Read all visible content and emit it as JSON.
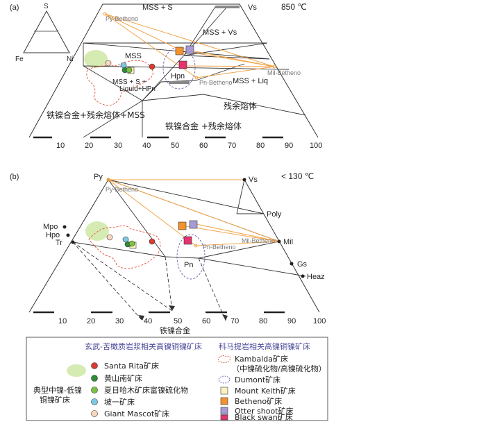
{
  "panel_a": {
    "tag": "(a)",
    "temperature": "850 ℃",
    "inset": {
      "top": "S",
      "left": "Fe",
      "right": "Ni"
    },
    "vertex_vs": "Vs",
    "fields": {
      "mss_s": "MSS + S",
      "mss_vs": "MSS + Vs",
      "mss": "MSS",
      "mss_s_liquid_1": "MSS + S +",
      "mss_s_liquid_2": "Liquid+HPn",
      "hpn": "Hpn",
      "mss_liq": "MSS + Liq",
      "residual_melt": "残余熔体",
      "alloy_melt_mss": "铁镍合金+残余熔体+MSS",
      "alloy_melt": "铁镍合金 +残余熔体"
    },
    "small_labels": {
      "py": "Py-Betheno",
      "pn": "Pn-Betheno",
      "mil": "Mil-Betheno"
    },
    "ticks": [
      "10",
      "20",
      "30",
      "40",
      "50",
      "60",
      "70",
      "80",
      "90",
      "100"
    ]
  },
  "panel_b": {
    "tag": "(b)",
    "temperature": "< 130 ℃",
    "vertices": {
      "py": "Py",
      "vs": "Vs",
      "poly": "Poly",
      "mil": "Mil",
      "gs": "Gs",
      "heaz": "Heaz",
      "mpo": "Mpo",
      "hpo": "Hpo",
      "tr": "Tr",
      "pn": "Pn"
    },
    "small_labels": {
      "py": "Py-Betheno",
      "pn": "Pn-Betheno",
      "mil": "Mil-Betheno"
    },
    "ticks": [
      "10",
      "20",
      "30",
      "40",
      "50",
      "60",
      "70",
      "80",
      "90",
      "100"
    ],
    "axis_label": "铁镍合金"
  },
  "legend": {
    "left_title": "玄武-苦橄质岩浆相关高镍铜镍矿床",
    "right_title": "科马提岩相关高镍铜镍矿床",
    "typical": [
      "典型中镍-低镍",
      "铜镍矿床"
    ],
    "left_items": [
      {
        "label": "Santa Rita矿床",
        "color": "#d93a32"
      },
      {
        "label": "黄山南矿床",
        "color": "#2e8b3a"
      },
      {
        "label": "夏日哈木矿床富镍硫化物",
        "color": "#7cc242"
      },
      {
        "label": "坡一矿床",
        "color": "#7ec8e3"
      },
      {
        "label": "Giant Mascot矿床",
        "color": "#fbd7c0"
      }
    ],
    "right_items": [
      {
        "label": "Kambalda矿床",
        "sub": "（中镍硫化物/高镍硫化物）"
      },
      {
        "label": "Dumont矿床"
      },
      {
        "label": "Mount Keith矿床",
        "color": "#fdf3c0"
      },
      {
        "label": "Betheno矿床",
        "color": "#f3922e"
      },
      {
        "label": "Otter shoot矿床",
        "color": "#a89ad4"
      },
      {
        "label": "Black swan矿床",
        "color": "#e5336e"
      }
    ],
    "colors": {
      "typical_fill": "#d6ebb2",
      "kambalda": "#e0503c",
      "dumont": "#6a5fb0",
      "orange_line": "#f3a54a"
    }
  }
}
